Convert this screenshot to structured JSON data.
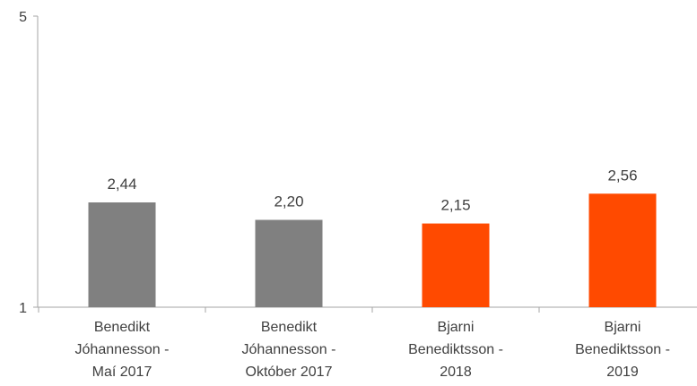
{
  "chart_data": {
    "type": "bar",
    "categories": [
      [
        "Benedikt",
        "Jóhannesson -",
        "Maí 2017"
      ],
      [
        "Benedikt",
        "Jóhannesson -",
        "Október 2017"
      ],
      [
        "Bjarni",
        "Benediktsson -",
        "2018"
      ],
      [
        "Bjarni",
        "Benediktsson -",
        "2019"
      ]
    ],
    "values": [
      2.44,
      2.2,
      2.15,
      2.56
    ],
    "value_labels": [
      "2,44",
      "2,20",
      "2,15",
      "2,56"
    ],
    "bar_colors": [
      "#808080",
      "#808080",
      "#FF4A00",
      "#FF4A00"
    ],
    "ylim": [
      1,
      5
    ],
    "y_ticks": [
      {
        "value": 5,
        "label": "5"
      },
      {
        "value": 1,
        "label": "1"
      }
    ],
    "title": "",
    "xlabel": "",
    "ylabel": "",
    "grid": false,
    "legend": "none",
    "axis_color": "#A6A6A6"
  }
}
